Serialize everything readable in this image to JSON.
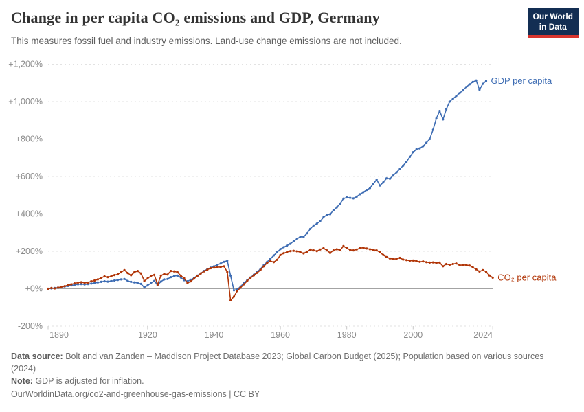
{
  "header": {
    "title": "Change in per capita CO₂ emissions and GDP, Germany",
    "subtitle": "This measures fossil fuel and industry emissions. Land-use change emissions are not included."
  },
  "logo": {
    "line1": "Our World",
    "line2": "in Data"
  },
  "chart_data": {
    "type": "line",
    "title": "Change in per capita CO₂ emissions and GDP, Germany",
    "xlabel": "",
    "ylabel": "",
    "grid": "horizontal-dashed",
    "legend_position": "end-of-line-labels",
    "xlim": [
      1890,
      2024
    ],
    "ylim": [
      -200,
      1200
    ],
    "xticks": [
      1890,
      1920,
      1940,
      1960,
      1980,
      2000,
      2024
    ],
    "ytick_values": [
      1200,
      1000,
      800,
      600,
      400,
      200,
      0,
      -200
    ],
    "ytick_labels": [
      "+1,200%",
      "+1,000%",
      "+800%",
      "+600%",
      "+400%",
      "+200%",
      "+0%",
      "-200%"
    ],
    "colors": {
      "gdp": "#3d6cb3",
      "co2": "#b13507",
      "grid": "#e2e2e2",
      "zero_line": "#a3a3a3",
      "tick_text": "#8b8b8b"
    },
    "series": [
      {
        "name": "GDP per capita",
        "key": "gdp",
        "color": "#3d6cb3",
        "start_year": 1890,
        "end_year": 2022,
        "values": [
          0,
          2,
          4,
          6,
          9,
          12,
          15,
          18,
          21,
          24,
          25,
          23,
          25,
          28,
          31,
          34,
          37,
          40,
          38,
          41,
          44,
          47,
          50,
          52,
          42,
          37,
          34,
          31,
          26,
          7,
          18,
          30,
          42,
          20,
          38,
          50,
          52,
          62,
          68,
          70,
          60,
          46,
          40,
          48,
          58,
          70,
          82,
          95,
          105,
          113,
          120,
          128,
          135,
          144,
          150,
          70,
          -8,
          -4,
          12,
          30,
          46,
          60,
          75,
          90,
          106,
          126,
          144,
          160,
          178,
          195,
          212,
          222,
          231,
          240,
          254,
          266,
          278,
          277,
          296,
          320,
          338,
          348,
          360,
          382,
          395,
          398,
          420,
          435,
          455,
          482,
          488,
          486,
          483,
          492,
          505,
          516,
          528,
          538,
          560,
          583,
          552,
          568,
          590,
          588,
          605,
          622,
          640,
          658,
          678,
          705,
          730,
          745,
          750,
          762,
          780,
          800,
          850,
          910,
          950,
          905,
          960,
          1000,
          1015,
          1030,
          1045,
          1060,
          1078,
          1092,
          1105,
          1113,
          1064,
          1095,
          1110
        ]
      },
      {
        "name": "CO₂ per capita",
        "key": "co2",
        "color": "#b13507",
        "start_year": 1890,
        "end_year": 2024,
        "values": [
          0,
          4,
          2,
          6,
          10,
          14,
          19,
          24,
          29,
          33,
          35,
          32,
          33,
          40,
          44,
          50,
          58,
          66,
          62,
          66,
          73,
          77,
          88,
          100,
          84,
          72,
          88,
          95,
          82,
          42,
          55,
          68,
          74,
          22,
          70,
          79,
          76,
          95,
          93,
          88,
          70,
          56,
          30,
          40,
          54,
          68,
          82,
          93,
          102,
          110,
          113,
          116,
          116,
          120,
          90,
          -62,
          -42,
          -12,
          6,
          24,
          42,
          58,
          72,
          85,
          100,
          120,
          138,
          148,
          142,
          155,
          180,
          190,
          196,
          201,
          203,
          200,
          196,
          189,
          198,
          209,
          205,
          201,
          210,
          217,
          205,
          192,
          205,
          211,
          206,
          228,
          217,
          208,
          205,
          210,
          217,
          220,
          215,
          211,
          208,
          205,
          195,
          181,
          169,
          162,
          159,
          160,
          165,
          156,
          153,
          150,
          151,
          148,
          144,
          146,
          142,
          140,
          141,
          138,
          140,
          120,
          132,
          128,
          132,
          135,
          126,
          127,
          127,
          124,
          114,
          104,
          92,
          100,
          91,
          71,
          59
        ]
      }
    ]
  },
  "footer": {
    "datasource_label": "Data source:",
    "datasource_text": " Bolt and van Zanden – Maddison Project Database 2023; Global Carbon Budget (2025); Population based on various sources (2024)",
    "note_label": "Note:",
    "note_text": " GDP is adjusted for inflation.",
    "url": "OurWorldinData.org/co2-and-greenhouse-gas-emissions",
    "separator": " | ",
    "license": "CC BY"
  }
}
